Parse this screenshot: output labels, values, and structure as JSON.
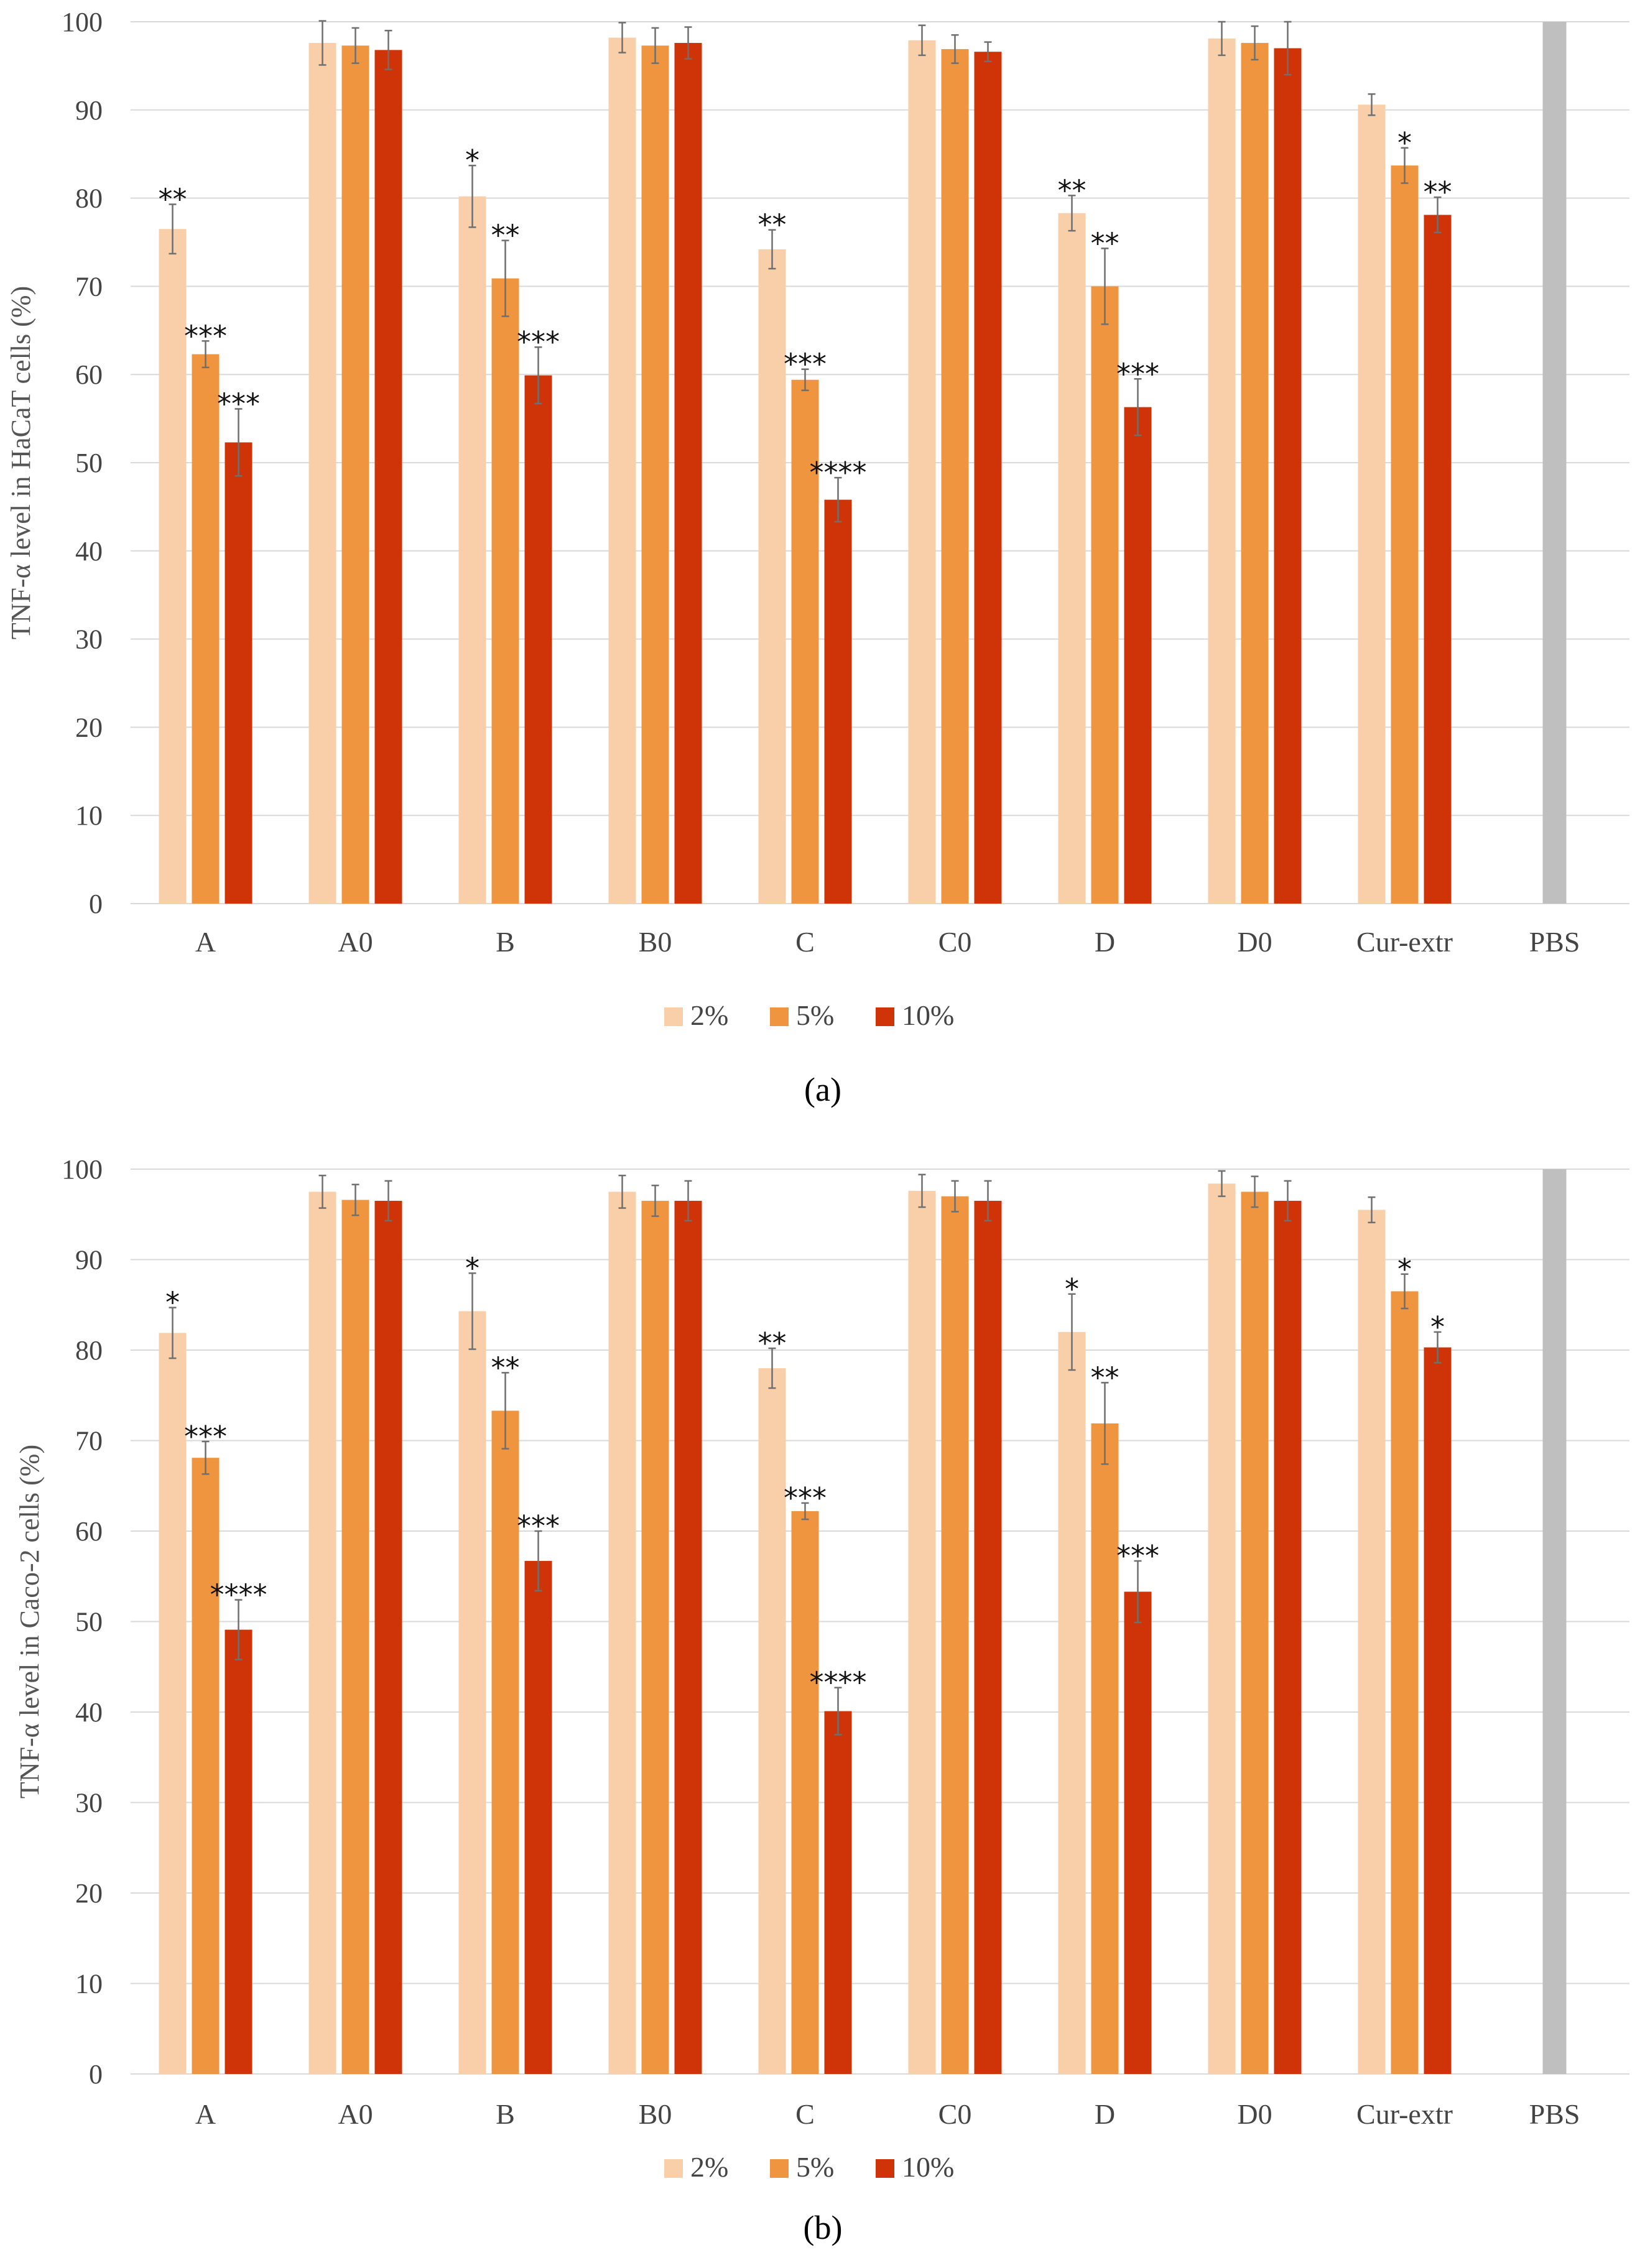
{
  "figure_panels": [
    "(a)",
    "(b)"
  ],
  "colors": {
    "2%": "#f9cfa9",
    "5%": "#f0953f",
    "10%": "#cf3308",
    "PBS": "#bfbfbf",
    "grid": "#d9d9d9"
  },
  "chart_data": [
    {
      "id": "a",
      "type": "bar",
      "panel_label": "(a)",
      "title": "",
      "xlabel": "",
      "ylabel": "TNF-α level in HaCaT cells (%)",
      "ylim": [
        0,
        100
      ],
      "yticks": [
        0,
        10,
        20,
        30,
        40,
        50,
        60,
        70,
        80,
        90,
        100
      ],
      "grid": true,
      "legend_position": "bottom-center",
      "categories": [
        "A",
        "A0",
        "B",
        "B0",
        "C",
        "C0",
        "D",
        "D0",
        "Cur-extr",
        "PBS"
      ],
      "series": [
        {
          "name": "2%",
          "values": [
            76.5,
            97.6,
            80.2,
            98.2,
            74.2,
            97.9,
            78.3,
            98.1,
            90.6,
            null
          ],
          "errors": [
            2.8,
            2.5,
            3.5,
            1.7,
            2.2,
            1.7,
            2.0,
            1.9,
            1.2,
            null
          ],
          "stars": [
            "**",
            "",
            "*",
            "",
            "**",
            "",
            "**",
            "",
            "",
            ""
          ]
        },
        {
          "name": "5%",
          "values": [
            62.3,
            97.3,
            70.9,
            97.3,
            59.4,
            96.9,
            70.0,
            97.6,
            83.7,
            null
          ],
          "errors": [
            1.5,
            2.0,
            4.3,
            2.0,
            1.2,
            1.6,
            4.3,
            1.9,
            2.0,
            null
          ],
          "stars": [
            "***",
            "",
            "**",
            "",
            "***",
            "",
            "**",
            "",
            "*",
            ""
          ]
        },
        {
          "name": "10%",
          "values": [
            52.3,
            96.8,
            59.9,
            97.6,
            45.8,
            96.6,
            56.3,
            97.0,
            78.1,
            null
          ],
          "errors": [
            3.8,
            2.2,
            3.2,
            1.8,
            2.5,
            1.1,
            3.2,
            3.0,
            2.0,
            null
          ],
          "stars": [
            "***",
            "",
            "***",
            "",
            "****",
            "",
            "***",
            "",
            "**",
            ""
          ]
        }
      ],
      "pbs_value": 100
    },
    {
      "id": "b",
      "type": "bar",
      "panel_label": "(b)",
      "title": "",
      "xlabel": "",
      "ylabel": "TNF-α level in Caco-2 cells (%)",
      "ylim": [
        0,
        100
      ],
      "yticks": [
        0,
        10,
        20,
        30,
        40,
        50,
        60,
        70,
        80,
        90,
        100
      ],
      "grid": true,
      "legend_position": "bottom-center",
      "categories": [
        "A",
        "A0",
        "B",
        "B0",
        "C",
        "C0",
        "D",
        "D0",
        "Cur-extr",
        "PBS"
      ],
      "series": [
        {
          "name": "2%",
          "values": [
            81.9,
            97.5,
            84.3,
            97.5,
            78.0,
            97.6,
            82.0,
            98.4,
            95.5,
            null
          ],
          "errors": [
            2.8,
            1.8,
            4.2,
            1.8,
            2.2,
            1.8,
            4.2,
            1.4,
            1.4,
            null
          ],
          "stars": [
            "*",
            "",
            "*",
            "",
            "**",
            "",
            "*",
            "",
            "",
            ""
          ]
        },
        {
          "name": "5%",
          "values": [
            68.1,
            96.6,
            73.3,
            96.5,
            62.2,
            97.0,
            71.9,
            97.5,
            86.5,
            null
          ],
          "errors": [
            1.8,
            1.7,
            4.2,
            1.7,
            0.9,
            1.7,
            4.5,
            1.7,
            1.9,
            null
          ],
          "stars": [
            "***",
            "",
            "**",
            "",
            "***",
            "",
            "**",
            "",
            "*",
            ""
          ]
        },
        {
          "name": "10%",
          "values": [
            49.1,
            96.5,
            56.7,
            96.5,
            40.1,
            96.5,
            53.3,
            96.5,
            80.3,
            null
          ],
          "errors": [
            3.3,
            2.2,
            3.3,
            2.2,
            2.6,
            2.2,
            3.4,
            2.2,
            1.7,
            null
          ],
          "stars": [
            "****",
            "",
            "***",
            "",
            "****",
            "",
            "***",
            "",
            "*",
            ""
          ]
        }
      ],
      "pbs_value": 100
    }
  ]
}
